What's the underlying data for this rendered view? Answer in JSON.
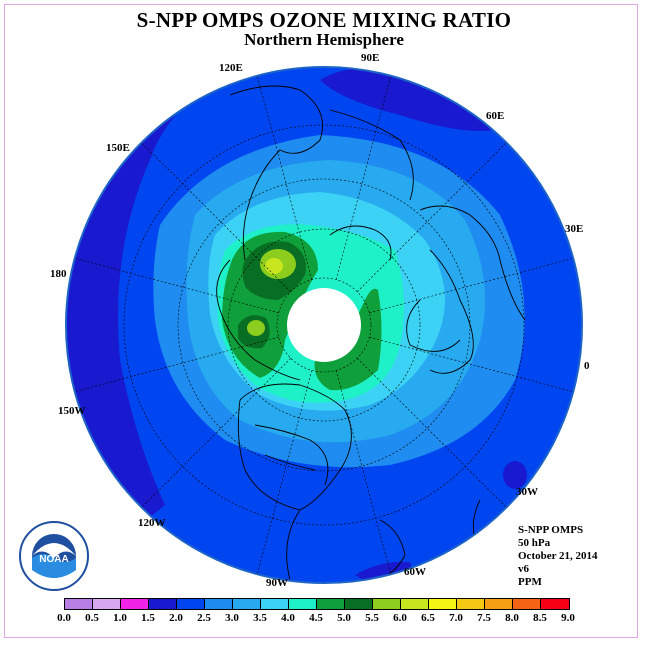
{
  "title": "S-NPP OMPS OZONE MIXING RATIO",
  "subtitle": "Northern Hemisphere",
  "longitude_labels": [
    "90E",
    "60E",
    "30E",
    "0",
    "30W",
    "60W",
    "90W",
    "120W",
    "150W",
    "180",
    "150E",
    "120E"
  ],
  "info": {
    "instrument": "S-NPP OMPS",
    "level": "50 hPa",
    "date": "October 21, 2014",
    "version": "v6",
    "units": "PPM"
  },
  "logo": {
    "icon": "noaa-logo",
    "text": "NOAA"
  },
  "colorbar": {
    "ticks": [
      "0.0",
      "0.5",
      "1.0",
      "1.5",
      "2.0",
      "2.5",
      "3.0",
      "3.5",
      "4.0",
      "4.5",
      "5.0",
      "5.5",
      "6.0",
      "6.5",
      "7.0",
      "7.5",
      "8.0",
      "8.5",
      "9.0"
    ],
    "colors": [
      "#b77fe6",
      "#d7a8f0",
      "#f023e6",
      "#1919d0",
      "#0046f0",
      "#1e8cf0",
      "#28aaf0",
      "#3cd2f5",
      "#1ef0c8",
      "#0fa03c",
      "#086e23",
      "#8ccd1e",
      "#c8e61e",
      "#f5f514",
      "#f5c814",
      "#f5a014",
      "#f56414",
      "#f50014",
      "#8c5a46"
    ]
  },
  "chart_data": {
    "type": "heatmap",
    "projection": "north polar stereographic",
    "quantity": "ozone mixing ratio",
    "pressure_level": "50 hPa",
    "units": "PPM",
    "contour_levels": [
      0.0,
      0.5,
      1.0,
      1.5,
      2.0,
      2.5,
      3.0,
      3.5,
      4.0,
      4.5,
      5.0,
      5.5,
      6.0,
      6.5,
      7.0,
      7.5,
      8.0,
      8.5,
      9.0
    ],
    "regions": [
      {
        "area": "outer ring, low latitudes",
        "range": [
          1.5,
          2.5
        ]
      },
      {
        "area": "mid latitudes",
        "range": [
          2.5,
          3.5
        ]
      },
      {
        "area": "high latitudes",
        "range": [
          3.5,
          4.0
        ]
      },
      {
        "area": "polar ring over Canada and Siberia",
        "range": [
          4.0,
          5.0
        ]
      },
      {
        "area": "peak over eastern Siberia",
        "range": [
          5.0,
          6.0
        ]
      },
      {
        "area": "polar cap",
        "range": null
      }
    ]
  }
}
